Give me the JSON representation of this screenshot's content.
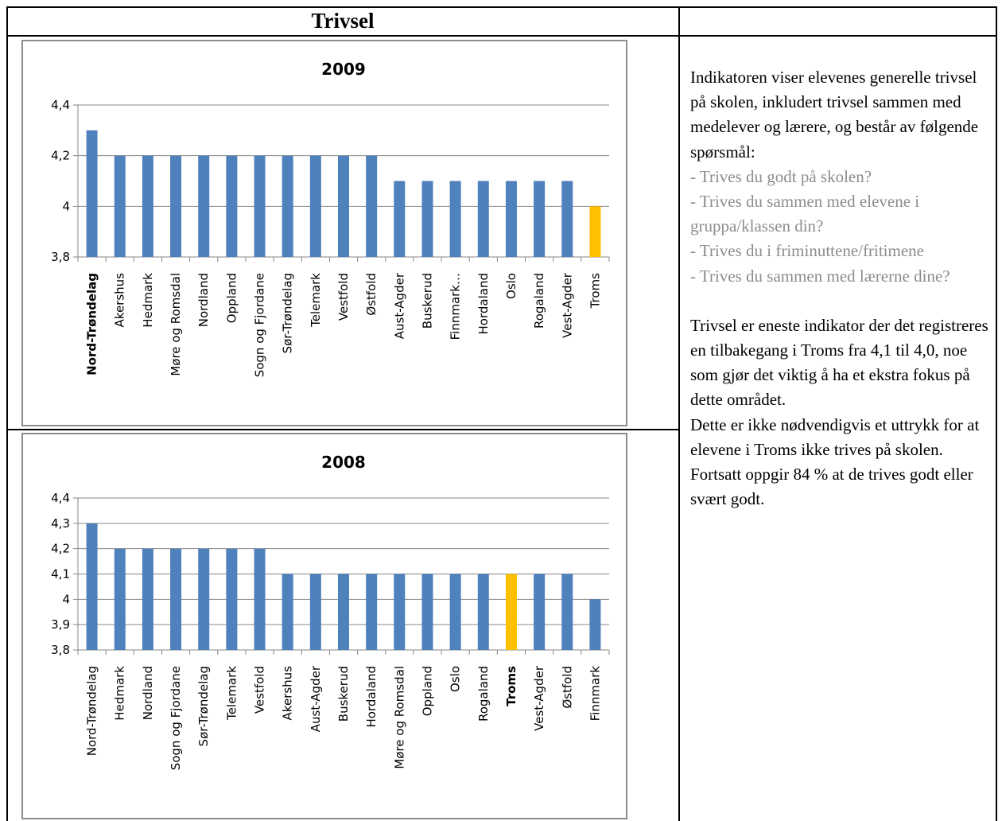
{
  "header": {
    "title": "Trivsel",
    "right": ""
  },
  "description": {
    "intro": "Indikatoren viser elevenes generelle trivsel på skolen, inkludert trivsel sammen med medelever og lærere, og består av følgende spørsmål:",
    "questions": [
      "- Trives du godt på skolen?",
      "- Trives du sammen med elevene i gruppa/klassen din?",
      "- Trives du i friminuttene/fritimene",
      "- Trives du sammen med lærerne dine?"
    ],
    "para2": "Trivsel er eneste indikator der det registreres en tilbakegang i Troms fra 4,1 til 4,0, noe som gjør det viktig å ha et ekstra fokus på dette området.",
    "para3": "Dette er ikke nødvendigvis et uttrykk for at elevene i Troms ikke trives på skolen. Fortsatt oppgir 84 % at de trives godt eller svært godt."
  },
  "colors": {
    "bar": "#4f81bd",
    "highlight": "#ffc000",
    "grid": "#868686"
  },
  "chart_data": [
    {
      "type": "bar",
      "title": "2009",
      "xlabel": "",
      "ylabel": "",
      "ylim": [
        3.8,
        4.4
      ],
      "yticks": [
        3.8,
        4.0,
        4.2,
        4.4
      ],
      "ytick_labels": [
        "3,8",
        "4",
        "4,2",
        "4,4"
      ],
      "categories": [
        "Nord-Trøndelag",
        "Akershus",
        "Hedmark",
        "Møre og Romsdal",
        "Nordland",
        "Oppland",
        "Sogn og Fjordane",
        "Sør-Trøndelag",
        "Telemark",
        "Vestfold",
        "Østfold",
        "Aust-Agder",
        "Buskerud",
        "Finnmark…",
        "Hordaland",
        "Oslo",
        "Rogaland",
        "Vest-Agder",
        "Troms"
      ],
      "values": [
        4.3,
        4.2,
        4.2,
        4.2,
        4.2,
        4.2,
        4.2,
        4.2,
        4.2,
        4.2,
        4.2,
        4.1,
        4.1,
        4.1,
        4.1,
        4.1,
        4.1,
        4.1,
        4.0
      ],
      "highlight": "Troms",
      "bold_label": "Nord-Trøndelag",
      "grid": true,
      "legend": "none"
    },
    {
      "type": "bar",
      "title": "2008",
      "xlabel": "",
      "ylabel": "",
      "ylim": [
        3.8,
        4.4
      ],
      "yticks": [
        3.8,
        3.9,
        4.0,
        4.1,
        4.2,
        4.3,
        4.4
      ],
      "ytick_labels": [
        "3,8",
        "3,9",
        "4",
        "4,1",
        "4,2",
        "4,3",
        "4,4"
      ],
      "categories": [
        "Nord-Trøndelag",
        "Hedmark",
        "Nordland",
        "Sogn og Fjordane",
        "Sør-Trøndelag",
        "Telemark",
        "Vestfold",
        "Akershus",
        "Aust-Agder",
        "Buskerud",
        "Hordaland",
        "Møre og Romsdal",
        "Oppland",
        "Oslo",
        "Rogaland",
        "Troms",
        "Vest-Agder",
        "Østfold",
        "Finnmark"
      ],
      "values": [
        4.3,
        4.2,
        4.2,
        4.2,
        4.2,
        4.2,
        4.2,
        4.1,
        4.1,
        4.1,
        4.1,
        4.1,
        4.1,
        4.1,
        4.1,
        4.1,
        4.1,
        4.1,
        4.0
      ],
      "highlight": "Troms",
      "bold_label": "Troms",
      "grid": true,
      "legend": "none"
    }
  ]
}
